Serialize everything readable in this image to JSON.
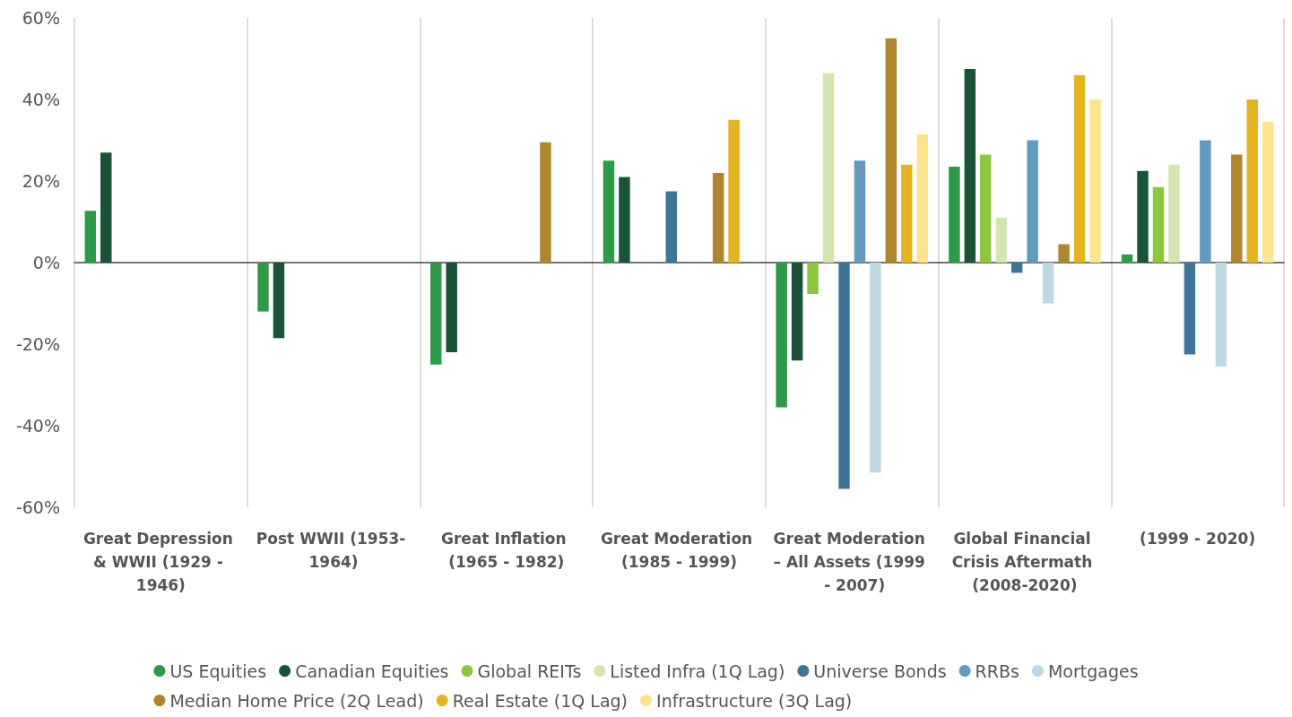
{
  "chart_data": {
    "type": "bar",
    "categories": [
      "Great Depression & WWII (1929 - 1946)",
      "Post WWII (1953- 1964)",
      "Great Inflation (1965 - 1982)",
      "Great Moderation (1985 - 1999)",
      "Great Moderation – All Assets (1999  - 2007)",
      "Global Financial Crisis Aftermath (2008-2020)",
      "(1999 - 2020)"
    ],
    "series": [
      {
        "name": "US Equities",
        "color": "#2e9a48",
        "values": [
          12.7,
          -12,
          -25,
          25,
          -35.5,
          23.5,
          2
        ]
      },
      {
        "name": "Canadian Equities",
        "color": "#1b5338",
        "values": [
          27,
          -18.5,
          -22,
          21,
          -24,
          47.5,
          22.5
        ]
      },
      {
        "name": "Global REITs",
        "color": "#8dc63f",
        "values": [
          null,
          null,
          null,
          null,
          -7.7,
          26.5,
          18.5
        ]
      },
      {
        "name": "Listed Infra (1Q Lag)",
        "color": "#d3e6b0",
        "values": [
          null,
          null,
          null,
          null,
          46.5,
          11,
          24
        ]
      },
      {
        "name": "Universe Bonds",
        "color": "#3e7597",
        "values": [
          null,
          null,
          null,
          17.5,
          -55.5,
          -2.5,
          -22.5
        ]
      },
      {
        "name": "RRBs",
        "color": "#6499bd",
        "values": [
          null,
          null,
          null,
          null,
          25,
          30,
          30
        ]
      },
      {
        "name": "Mortgages",
        "color": "#bfd7e3",
        "values": [
          null,
          null,
          null,
          null,
          -51.5,
          -10,
          -25.5
        ]
      },
      {
        "name": "Median Home Price (2Q Lead)",
        "color": "#af862e",
        "values": [
          null,
          null,
          29.5,
          22,
          55,
          4.5,
          26.5
        ]
      },
      {
        "name": "Real Estate (1Q Lag)",
        "color": "#e5b322",
        "values": [
          null,
          null,
          null,
          35,
          24,
          46,
          40
        ]
      },
      {
        "name": "Infrastructure (3Q Lag)",
        "color": "#fee38e",
        "values": [
          null,
          null,
          null,
          null,
          31.5,
          40,
          34.5
        ]
      }
    ],
    "ylim": [
      -60,
      60
    ],
    "yticks": [
      {
        "value": -60,
        "label": "-60%"
      },
      {
        "value": -40,
        "label": "-40%"
      },
      {
        "value": -20,
        "label": "-20%"
      },
      {
        "value": 0,
        "label": "0%"
      },
      {
        "value": 20,
        "label": "20%"
      },
      {
        "value": 40,
        "label": "40%"
      },
      {
        "value": 60,
        "label": "60%"
      }
    ],
    "grid": "x",
    "legend": "bottom"
  }
}
